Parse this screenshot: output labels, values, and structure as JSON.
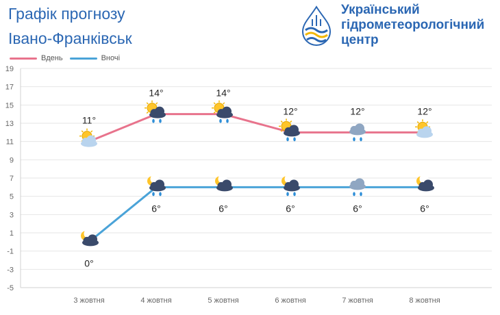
{
  "header": {
    "title": "Графік прогнозу",
    "city": "Івано-Франківськ",
    "org_line1": "Український",
    "org_line2": "гідрометеорологічний",
    "org_line3": "центр"
  },
  "chart_data": {
    "type": "line",
    "categories": [
      "3 жовтня",
      "4 жовтня",
      "5 жовтня",
      "6 жовтня",
      "7 жовтня",
      "8 жовтня"
    ],
    "series": [
      {
        "name": "Вдень",
        "color": "#e8738c",
        "values": [
          11,
          14,
          14,
          12,
          12,
          12
        ],
        "labels": [
          "11°",
          "14°",
          "14°",
          "12°",
          "12°",
          "12°"
        ],
        "icons": [
          "sun-cloud-icon",
          "sun-rain-cloud-icon",
          "sun-rain-cloud-icon",
          "sun-rain-cloud-icon",
          "rain-cloud-icon",
          "sun-cloud-icon"
        ]
      },
      {
        "name": "Вночі",
        "color": "#4aa3d8",
        "values": [
          0,
          6,
          6,
          6,
          6,
          6
        ],
        "labels": [
          "0°",
          "6°",
          "6°",
          "6°",
          "6°",
          "6°"
        ],
        "icons": [
          "moon-cloud-icon",
          "moon-rain-cloud-icon",
          "moon-cloud-icon",
          "moon-rain-cloud-icon",
          "rain-cloud-icon",
          "moon-cloud-icon"
        ]
      }
    ],
    "yticks": [
      "19",
      "17",
      "15",
      "13",
      "11",
      "9",
      "7",
      "5",
      "3",
      "1",
      "-1",
      "-3",
      "-5"
    ],
    "ylim": [
      -5,
      19
    ],
    "grid": true,
    "legend": "top-left"
  },
  "colors": {
    "brand": "#2b67b3",
    "grid": "#e6e6e6",
    "axis_text": "#666666"
  }
}
